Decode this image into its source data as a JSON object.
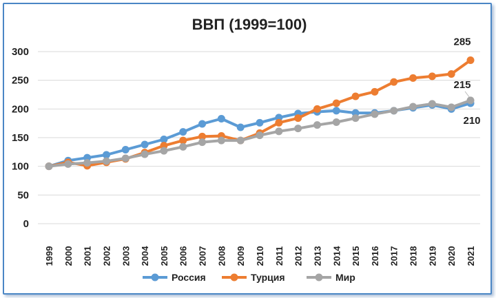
{
  "chart_data": {
    "type": "line",
    "title": "ВВП (1999=100)",
    "xlabel": "",
    "ylabel": "",
    "ylim": [
      0,
      300
    ],
    "yticks": [
      "0",
      "50",
      "100",
      "150",
      "200",
      "250",
      "300"
    ],
    "grid": "horizontal",
    "legend": "bottom",
    "categories": [
      "1999",
      "2000",
      "2001",
      "2002",
      "2003",
      "2004",
      "2005",
      "2006",
      "2007",
      "2008",
      "2009",
      "2010",
      "2011",
      "2012",
      "2013",
      "2014",
      "2015",
      "2016",
      "2017",
      "2018",
      "2019",
      "2020",
      "2021"
    ],
    "series": [
      {
        "name": "Россия",
        "color": "#5b9bd5",
        "values": [
          100,
          110,
          115,
          120,
          129,
          138,
          147,
          160,
          174,
          183,
          168,
          176,
          185,
          192,
          195,
          197,
          193,
          193,
          197,
          202,
          207,
          200,
          210
        ]
      },
      {
        "name": "Турция",
        "color": "#ed7d31",
        "values": [
          100,
          107,
          101,
          107,
          113,
          124,
          136,
          145,
          152,
          153,
          145,
          158,
          176,
          184,
          200,
          210,
          222,
          230,
          247,
          254,
          257,
          261,
          285
        ]
      },
      {
        "name": "Мир",
        "color": "#a5a5a5",
        "values": [
          100,
          104,
          106,
          109,
          114,
          121,
          127,
          134,
          142,
          145,
          145,
          154,
          161,
          166,
          172,
          177,
          184,
          191,
          197,
          204,
          209,
          203,
          215
        ]
      }
    ],
    "data_labels": [
      {
        "series": "Турция",
        "category": "2021",
        "text": "285"
      },
      {
        "series": "Мир",
        "category": "2021",
        "text": "215"
      },
      {
        "series": "Россия",
        "category": "2021",
        "text": "210"
      }
    ]
  }
}
